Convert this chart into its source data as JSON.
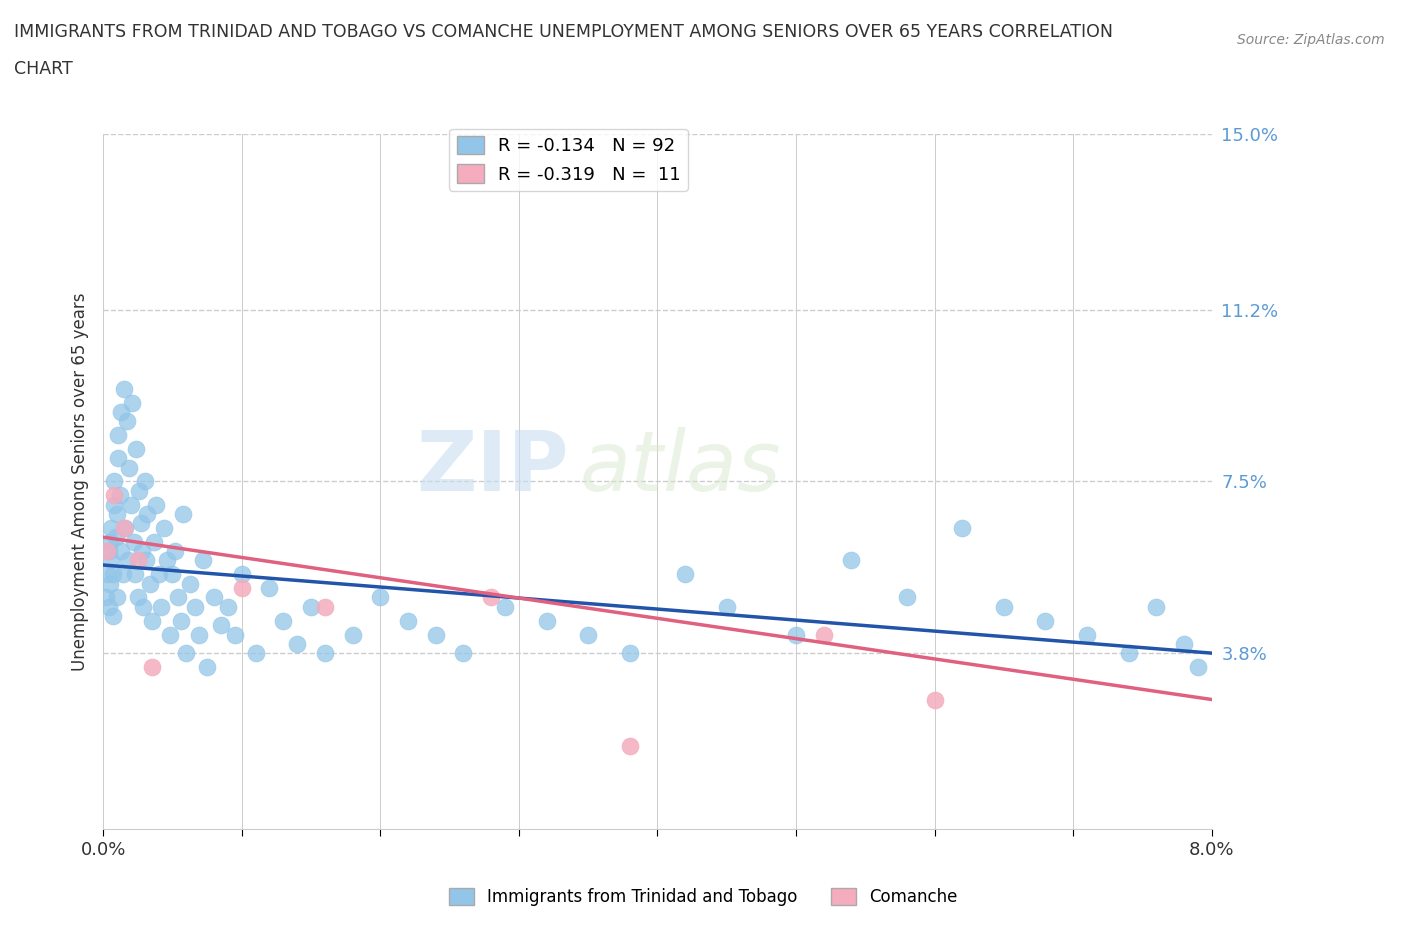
{
  "title_line1": "IMMIGRANTS FROM TRINIDAD AND TOBAGO VS COMANCHE UNEMPLOYMENT AMONG SENIORS OVER 65 YEARS CORRELATION",
  "title_line2": "CHART",
  "source_text": "Source: ZipAtlas.com",
  "ylabel": "Unemployment Among Seniors over 65 years",
  "xlim": [
    0.0,
    0.08
  ],
  "ylim": [
    0.0,
    0.15
  ],
  "ytick_positions": [
    0.038,
    0.075,
    0.112,
    0.15
  ],
  "ytick_labels": [
    "3.8%",
    "7.5%",
    "11.2%",
    "15.0%"
  ],
  "grid_color": "#cccccc",
  "background_color": "#ffffff",
  "blue_color": "#92C5E8",
  "pink_color": "#F4ACBE",
  "blue_line_color": "#2255AA",
  "pink_line_color": "#E06080",
  "legend_R1": "R = -0.134",
  "legend_N1": "N = 92",
  "legend_R2": "R = -0.319",
  "legend_N2": "N =  11",
  "watermark_zip": "ZIP",
  "watermark_atlas": "atlas",
  "blue_points_x": [
    0.0002,
    0.0003,
    0.0004,
    0.0004,
    0.0005,
    0.0005,
    0.0006,
    0.0006,
    0.0007,
    0.0007,
    0.0008,
    0.0008,
    0.0009,
    0.001,
    0.001,
    0.0011,
    0.0011,
    0.0012,
    0.0013,
    0.0013,
    0.0014,
    0.0015,
    0.0016,
    0.0017,
    0.0018,
    0.0019,
    0.002,
    0.0021,
    0.0022,
    0.0023,
    0.0024,
    0.0025,
    0.0026,
    0.0027,
    0.0028,
    0.0029,
    0.003,
    0.0031,
    0.0032,
    0.0034,
    0.0035,
    0.0037,
    0.0038,
    0.004,
    0.0042,
    0.0044,
    0.0046,
    0.0048,
    0.005,
    0.0052,
    0.0054,
    0.0056,
    0.0058,
    0.006,
    0.0063,
    0.0066,
    0.0069,
    0.0072,
    0.0075,
    0.008,
    0.0085,
    0.009,
    0.0095,
    0.01,
    0.011,
    0.012,
    0.013,
    0.014,
    0.015,
    0.016,
    0.018,
    0.02,
    0.022,
    0.024,
    0.026,
    0.029,
    0.032,
    0.035,
    0.038,
    0.042,
    0.045,
    0.05,
    0.054,
    0.058,
    0.062,
    0.065,
    0.068,
    0.071,
    0.074,
    0.076,
    0.078,
    0.079
  ],
  "blue_points_y": [
    0.05,
    0.055,
    0.048,
    0.06,
    0.053,
    0.062,
    0.058,
    0.065,
    0.046,
    0.055,
    0.07,
    0.075,
    0.063,
    0.05,
    0.068,
    0.08,
    0.085,
    0.072,
    0.09,
    0.06,
    0.055,
    0.095,
    0.065,
    0.088,
    0.058,
    0.078,
    0.07,
    0.092,
    0.062,
    0.055,
    0.082,
    0.05,
    0.073,
    0.066,
    0.06,
    0.048,
    0.075,
    0.058,
    0.068,
    0.053,
    0.045,
    0.062,
    0.07,
    0.055,
    0.048,
    0.065,
    0.058,
    0.042,
    0.055,
    0.06,
    0.05,
    0.045,
    0.068,
    0.038,
    0.053,
    0.048,
    0.042,
    0.058,
    0.035,
    0.05,
    0.044,
    0.048,
    0.042,
    0.055,
    0.038,
    0.052,
    0.045,
    0.04,
    0.048,
    0.038,
    0.042,
    0.05,
    0.045,
    0.042,
    0.038,
    0.048,
    0.045,
    0.042,
    0.038,
    0.055,
    0.048,
    0.042,
    0.058,
    0.05,
    0.065,
    0.048,
    0.045,
    0.042,
    0.038,
    0.048,
    0.04,
    0.035
  ],
  "pink_points_x": [
    0.0003,
    0.0008,
    0.0015,
    0.0025,
    0.0035,
    0.01,
    0.016,
    0.028,
    0.038,
    0.06,
    0.052
  ],
  "pink_points_y": [
    0.06,
    0.072,
    0.065,
    0.058,
    0.035,
    0.052,
    0.048,
    0.05,
    0.018,
    0.028,
    0.042
  ],
  "blue_line_x0": 0.0,
  "blue_line_x1": 0.08,
  "blue_line_y0": 0.057,
  "blue_line_y1": 0.038,
  "pink_line_x0": 0.0,
  "pink_line_x1": 0.08,
  "pink_line_y0": 0.063,
  "pink_line_y1": 0.028
}
